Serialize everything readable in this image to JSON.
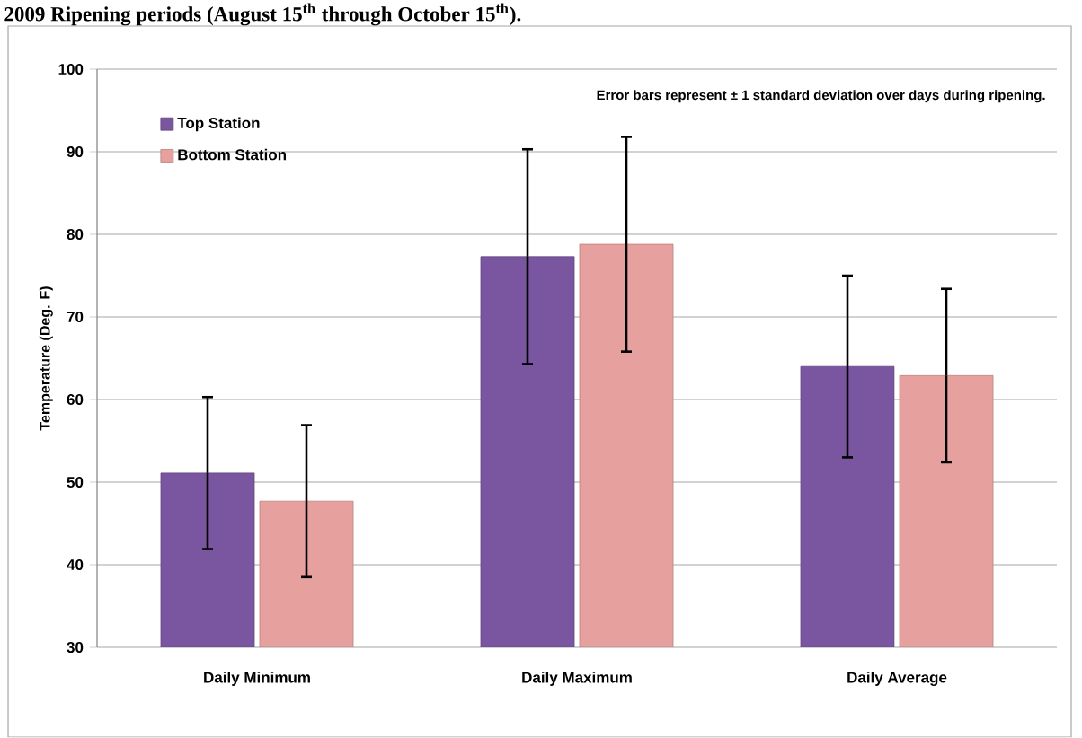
{
  "chart_data": {
    "type": "bar",
    "title": "2009 Ripening periods (August 15$^{th}$ through October 15$^{th}$).",
    "ylabel": "Temperature (Deg. F)",
    "categories": [
      "Daily Minimum",
      "Daily Maximum",
      "Daily Average"
    ],
    "series": [
      {
        "name": "Top Station",
        "color": "#7a56a0",
        "values": [
          51.1,
          77.3,
          64.0
        ],
        "errors": [
          9.2,
          13.0,
          11.0
        ]
      },
      {
        "name": "Bottom Station",
        "color": "#e6a09e",
        "values": [
          47.7,
          78.8,
          62.9
        ],
        "errors": [
          9.2,
          13.0,
          10.5
        ]
      }
    ],
    "ylim": [
      30,
      100
    ],
    "yticks": [
      30,
      40,
      50,
      60,
      70,
      80,
      90,
      100
    ],
    "grid": "y",
    "legend": "top left",
    "annotations": [
      "Error bars represent ± 1 standard deviation over days during ripening."
    ]
  }
}
